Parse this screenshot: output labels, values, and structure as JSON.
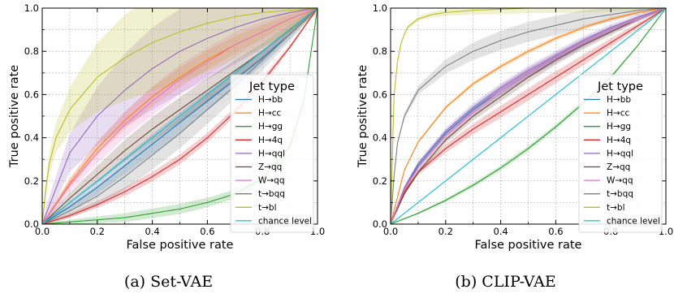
{
  "chart_data": [
    {
      "type": "line",
      "panel": "a",
      "caption": "(a) Set-VAE",
      "xlabel": "False positive rate",
      "ylabel": "True positive rate",
      "xlim": [
        0.0,
        1.0
      ],
      "ylim": [
        0.0,
        1.0
      ],
      "xticks": [
        "0.0",
        "0.2",
        "0.4",
        "0.6",
        "0.8",
        "1.0"
      ],
      "yticks": [
        "0.0",
        "0.2",
        "0.4",
        "0.6",
        "0.8",
        "1.0"
      ],
      "grid": true,
      "legend": {
        "title": "Jet type",
        "placement": "center-right"
      },
      "series": [
        {
          "name": "H→bb",
          "color": "#1f77b4",
          "x": [
            0,
            0.1,
            0.2,
            0.3,
            0.4,
            0.5,
            0.6,
            0.7,
            0.8,
            0.9,
            1.0
          ],
          "y": [
            0,
            0.08,
            0.17,
            0.27,
            0.37,
            0.47,
            0.57,
            0.67,
            0.77,
            0.88,
            1.0
          ],
          "band": 0.04
        },
        {
          "name": "H→cc",
          "color": "#ff7f0e",
          "x": [
            0,
            0.1,
            0.2,
            0.3,
            0.4,
            0.5,
            0.6,
            0.7,
            0.8,
            0.9,
            1.0
          ],
          "y": [
            0,
            0.19,
            0.35,
            0.48,
            0.59,
            0.68,
            0.76,
            0.83,
            0.89,
            0.95,
            1.0
          ],
          "band": 0.04
        },
        {
          "name": "H→gg",
          "color": "#2ca02c",
          "x": [
            0,
            0.1,
            0.2,
            0.3,
            0.4,
            0.5,
            0.6,
            0.7,
            0.8,
            0.9,
            0.95,
            1.0
          ],
          "y": [
            0,
            0.01,
            0.02,
            0.03,
            0.05,
            0.07,
            0.1,
            0.14,
            0.21,
            0.36,
            0.57,
            1.0
          ],
          "band": 0.02
        },
        {
          "name": "H→4q",
          "color": "#d62728",
          "x": [
            0,
            0.1,
            0.2,
            0.3,
            0.4,
            0.5,
            0.6,
            0.7,
            0.8,
            0.9,
            1.0
          ],
          "y": [
            0,
            0.04,
            0.09,
            0.15,
            0.22,
            0.3,
            0.4,
            0.52,
            0.66,
            0.82,
            1.0
          ],
          "band": 0.02
        },
        {
          "name": "H→qql",
          "color": "#9467bd",
          "x": [
            0,
            0.1,
            0.2,
            0.3,
            0.4,
            0.5,
            0.6,
            0.7,
            0.8,
            0.9,
            1.0
          ],
          "y": [
            0,
            0.33,
            0.5,
            0.62,
            0.72,
            0.8,
            0.86,
            0.91,
            0.95,
            0.98,
            1.0
          ],
          "band": 0.17
        },
        {
          "name": "Z→qq",
          "color": "#6b4a3a",
          "x": [
            0,
            0.1,
            0.2,
            0.3,
            0.4,
            0.5,
            0.6,
            0.7,
            0.8,
            0.9,
            1.0
          ],
          "y": [
            0,
            0.12,
            0.23,
            0.34,
            0.44,
            0.53,
            0.62,
            0.71,
            0.8,
            0.9,
            1.0
          ],
          "band": 0.05
        },
        {
          "name": "W→qq",
          "color": "#e377c2",
          "x": [
            0,
            0.1,
            0.2,
            0.3,
            0.4,
            0.5,
            0.6,
            0.7,
            0.8,
            0.9,
            1.0
          ],
          "y": [
            0,
            0.18,
            0.33,
            0.46,
            0.57,
            0.67,
            0.75,
            0.83,
            0.89,
            0.95,
            1.0
          ],
          "band": 0.06
        },
        {
          "name": "t→bqq",
          "color": "#7f7f7f",
          "x": [
            0,
            0.1,
            0.2,
            0.3,
            0.4,
            0.5,
            0.6,
            0.7,
            0.8,
            0.9,
            1.0
          ],
          "y": [
            0,
            0.06,
            0.13,
            0.22,
            0.32,
            0.42,
            0.53,
            0.64,
            0.76,
            0.88,
            1.0
          ],
          "band": 0.06
        },
        {
          "name": "t→bl",
          "color": "#bcbd22",
          "x": [
            0,
            0.02,
            0.05,
            0.1,
            0.2,
            0.3,
            0.4,
            0.5,
            0.6,
            0.7,
            0.8,
            0.9,
            1.0
          ],
          "y": [
            0,
            0.25,
            0.4,
            0.53,
            0.68,
            0.77,
            0.84,
            0.89,
            0.93,
            0.96,
            0.98,
            0.99,
            1.0
          ],
          "band": 0.2
        },
        {
          "name": "chance level",
          "color": "#17becf",
          "x": [
            0,
            1.0
          ],
          "y": [
            0,
            1.0
          ],
          "band": 0
        }
      ]
    },
    {
      "type": "line",
      "panel": "b",
      "caption": "(b) CLIP-VAE",
      "xlabel": "False positive rate",
      "ylabel": "True positive rate",
      "xlim": [
        0.0,
        1.0
      ],
      "ylim": [
        0.0,
        1.0
      ],
      "xticks": [
        "0.0",
        "0.2",
        "0.4",
        "0.6",
        "0.8",
        "1.0"
      ],
      "yticks": [
        "0.0",
        "0.2",
        "0.4",
        "0.6",
        "0.8",
        "1.0"
      ],
      "grid": true,
      "legend": {
        "title": "Jet type",
        "placement": "center-right"
      },
      "series": [
        {
          "name": "H→bb",
          "color": "#1f77b4",
          "x": [
            0,
            0.05,
            0.1,
            0.2,
            0.3,
            0.4,
            0.5,
            0.6,
            0.7,
            0.8,
            0.9,
            1.0
          ],
          "y": [
            0,
            0.16,
            0.27,
            0.42,
            0.53,
            0.62,
            0.7,
            0.77,
            0.84,
            0.9,
            0.95,
            1.0
          ],
          "band": 0.02
        },
        {
          "name": "H→cc",
          "color": "#ff7f0e",
          "x": [
            0,
            0.05,
            0.1,
            0.2,
            0.3,
            0.4,
            0.5,
            0.6,
            0.7,
            0.8,
            0.9,
            1.0
          ],
          "y": [
            0,
            0.25,
            0.38,
            0.54,
            0.65,
            0.73,
            0.8,
            0.86,
            0.91,
            0.95,
            0.98,
            1.0
          ],
          "band": 0.01
        },
        {
          "name": "H→gg",
          "color": "#2ca02c",
          "x": [
            0,
            0.1,
            0.2,
            0.3,
            0.4,
            0.5,
            0.6,
            0.7,
            0.8,
            0.9,
            1.0
          ],
          "y": [
            0,
            0.05,
            0.11,
            0.18,
            0.26,
            0.35,
            0.45,
            0.56,
            0.68,
            0.83,
            1.0
          ],
          "band": 0.01
        },
        {
          "name": "H→4q",
          "color": "#d62728",
          "x": [
            0,
            0.05,
            0.1,
            0.2,
            0.3,
            0.4,
            0.5,
            0.6,
            0.7,
            0.8,
            0.9,
            1.0
          ],
          "y": [
            0,
            0.15,
            0.24,
            0.35,
            0.44,
            0.52,
            0.6,
            0.68,
            0.76,
            0.84,
            0.92,
            1.0
          ],
          "band": 0.025
        },
        {
          "name": "H→qql",
          "color": "#9467bd",
          "x": [
            0,
            0.05,
            0.1,
            0.2,
            0.3,
            0.4,
            0.5,
            0.6,
            0.7,
            0.8,
            0.9,
            1.0
          ],
          "y": [
            0,
            0.17,
            0.28,
            0.43,
            0.54,
            0.63,
            0.71,
            0.78,
            0.85,
            0.91,
            0.96,
            1.0
          ],
          "band": 0.02
        },
        {
          "name": "Z→qq",
          "color": "#6b4a3a",
          "x": [
            0,
            0.05,
            0.1,
            0.2,
            0.3,
            0.4,
            0.5,
            0.6,
            0.7,
            0.8,
            0.9,
            1.0
          ],
          "y": [
            0,
            0.14,
            0.24,
            0.39,
            0.5,
            0.59,
            0.68,
            0.76,
            0.83,
            0.89,
            0.95,
            1.0
          ],
          "band": 0.02
        },
        {
          "name": "W→qq",
          "color": "#e377c2",
          "x": [
            0,
            0.05,
            0.1,
            0.2,
            0.3,
            0.4,
            0.5,
            0.6,
            0.7,
            0.8,
            0.9,
            1.0
          ],
          "y": [
            0,
            0.16,
            0.26,
            0.41,
            0.52,
            0.62,
            0.7,
            0.77,
            0.84,
            0.9,
            0.95,
            1.0
          ],
          "band": 0.02
        },
        {
          "name": "t→bqq",
          "color": "#7f7f7f",
          "x": [
            0,
            0.02,
            0.05,
            0.1,
            0.2,
            0.3,
            0.4,
            0.5,
            0.6,
            0.7,
            0.8,
            0.9,
            1.0
          ],
          "y": [
            0,
            0.35,
            0.5,
            0.62,
            0.73,
            0.8,
            0.85,
            0.89,
            0.92,
            0.95,
            0.97,
            0.99,
            1.0
          ],
          "band": 0.04
        },
        {
          "name": "t→bl",
          "color": "#bcbd22",
          "x": [
            0,
            0.01,
            0.02,
            0.04,
            0.06,
            0.1,
            0.15,
            0.2,
            0.3,
            0.5,
            0.7,
            1.0
          ],
          "y": [
            0,
            0.55,
            0.72,
            0.85,
            0.91,
            0.95,
            0.97,
            0.98,
            0.99,
            1.0,
            1.0,
            1.0
          ],
          "band": 0.02
        },
        {
          "name": "chance level",
          "color": "#17becf",
          "x": [
            0,
            1.0
          ],
          "y": [
            0,
            1.0
          ],
          "band": 0
        }
      ]
    }
  ]
}
